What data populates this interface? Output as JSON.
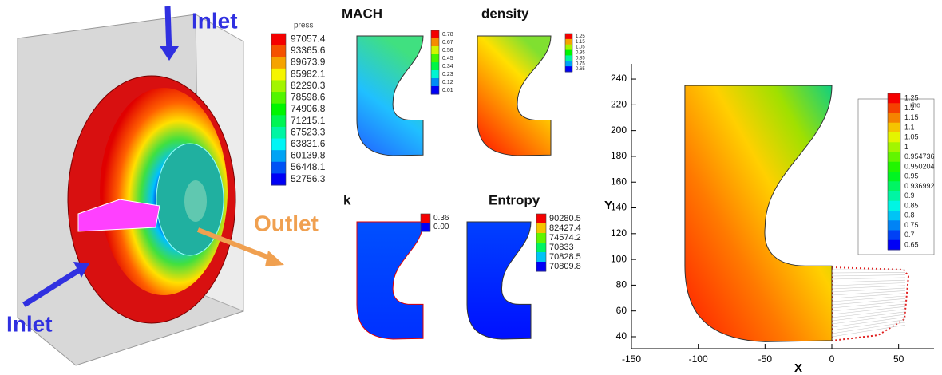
{
  "figure": {
    "left": {
      "inlet_top": "Inlet",
      "inlet_bottom": "Inlet",
      "outlet": "Outlet",
      "legend": {
        "title": "press",
        "labels": [
          "97057.4",
          "93365.6",
          "89673.9",
          "85982.1",
          "82290.3",
          "78598.6",
          "74906.8",
          "71215.1",
          "67523.3",
          "63831.6",
          "60139.8",
          "56448.1",
          "52756.3"
        ]
      }
    },
    "panels": [
      {
        "title": "MACH",
        "labels": [
          "0.78",
          "0.67",
          "0.56",
          "0.45",
          "0.34",
          "0.23",
          "0.12",
          "0.01"
        ]
      },
      {
        "title": "density",
        "labels": [
          "1.25",
          "1.15",
          "1.05",
          "0.95",
          "0.85",
          "0.75",
          "0.65"
        ]
      },
      {
        "title": "k",
        "labels": [
          "0.36",
          "0.00"
        ]
      },
      {
        "title": "Entropy",
        "labels": [
          "90280.5",
          "82427.4",
          "74574.2",
          "70833",
          "70828.5",
          "70809.8"
        ]
      }
    ],
    "plot": {
      "xlabel": "X",
      "ylabel": "Y",
      "xlim": [
        -150,
        76.5
      ],
      "ylim": [
        30.7,
        251.8
      ],
      "xticks": [
        -150,
        -100,
        -50,
        0,
        50
      ],
      "yticks": [
        40,
        60,
        80,
        100,
        120,
        140,
        160,
        180,
        200,
        220,
        240
      ],
      "legend": {
        "title": "rho",
        "labels": [
          "1.25",
          "1.2",
          "1.15",
          "1.1",
          "1.05",
          "1",
          "0.954736",
          "0.950204",
          "0.95",
          "0.936992",
          "0.9",
          "0.85",
          "0.8",
          "0.75",
          "0.7",
          "0.65"
        ]
      }
    }
  }
}
